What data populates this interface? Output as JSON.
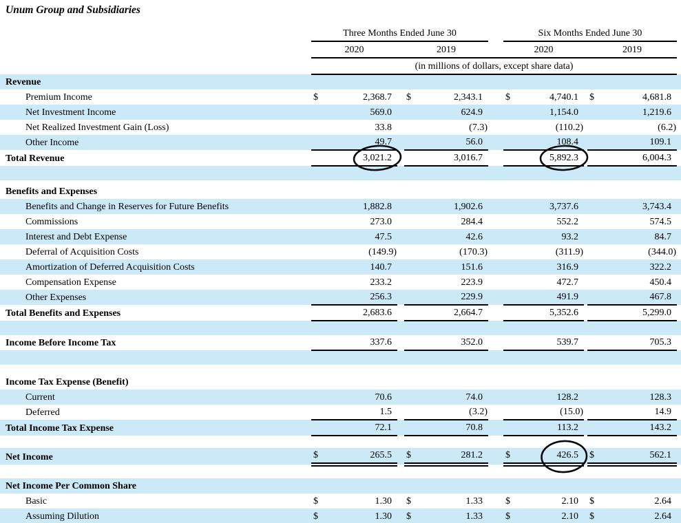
{
  "title": "Unum Group and Subsidiaries",
  "colors": {
    "row_stripe": "#cce9f8",
    "text": "#000000",
    "circle_ink": "#0a0a0a"
  },
  "table": {
    "col_groups": [
      {
        "label": "Three Months Ended June 30",
        "years": [
          "2020",
          "2019"
        ]
      },
      {
        "label": "Six Months Ended June 30",
        "years": [
          "2020",
          "2019"
        ]
      }
    ],
    "note": "(in millions of dollars, except share data)",
    "rows": [
      {
        "type": "section",
        "label": "Revenue",
        "bg": "blue"
      },
      {
        "type": "data",
        "label": "Premium Income",
        "indent": true,
        "bg": "white",
        "dollar": true,
        "values": [
          "2,368.7",
          "2,343.1",
          "4,740.1",
          "4,681.8"
        ]
      },
      {
        "type": "data",
        "label": "Net Investment Income",
        "indent": true,
        "bg": "blue",
        "values": [
          "569.0",
          "624.9",
          "1,154.0",
          "1,219.6"
        ]
      },
      {
        "type": "data",
        "label": "Net Realized Investment Gain (Loss)",
        "indent": true,
        "bg": "white",
        "values": [
          "33.8",
          "(7.3)",
          "(110.2)",
          "(6.2)"
        ]
      },
      {
        "type": "data",
        "label": "Other Income",
        "indent": true,
        "bg": "blue",
        "ul": true,
        "values": [
          "49.7",
          "56.0",
          "108.4",
          "109.1"
        ]
      },
      {
        "type": "data",
        "label": "Total Revenue",
        "bg": "white",
        "bold": true,
        "ul": true,
        "values": [
          "3,021.2",
          "3,016.7",
          "5,892.3",
          "6,004.3"
        ]
      },
      {
        "type": "spacer",
        "bg": "blue"
      },
      {
        "type": "section",
        "label": "Benefits and Expenses",
        "bg": "white",
        "pad": true
      },
      {
        "type": "data",
        "label": "Benefits and Change in Reserves for Future Benefits",
        "indent": true,
        "bg": "blue",
        "values": [
          "1,882.8",
          "1,902.6",
          "3,737.6",
          "3,743.4"
        ]
      },
      {
        "type": "data",
        "label": "Commissions",
        "indent": true,
        "bg": "white",
        "values": [
          "273.0",
          "284.4",
          "552.2",
          "574.5"
        ]
      },
      {
        "type": "data",
        "label": "Interest and Debt Expense",
        "indent": true,
        "bg": "blue",
        "values": [
          "47.5",
          "42.6",
          "93.2",
          "84.7"
        ]
      },
      {
        "type": "data",
        "label": "Deferral of Acquisition Costs",
        "indent": true,
        "bg": "white",
        "values": [
          "(149.9)",
          "(170.3)",
          "(311.9)",
          "(344.0)"
        ]
      },
      {
        "type": "data",
        "label": "Amortization of Deferred Acquisition Costs",
        "indent": true,
        "bg": "blue",
        "values": [
          "140.7",
          "151.6",
          "316.9",
          "322.2"
        ]
      },
      {
        "type": "data",
        "label": "Compensation Expense",
        "indent": true,
        "bg": "white",
        "values": [
          "233.2",
          "223.9",
          "472.7",
          "450.4"
        ]
      },
      {
        "type": "data",
        "label": "Other Expenses",
        "indent": true,
        "bg": "blue",
        "ul": true,
        "values": [
          "256.3",
          "229.9",
          "491.9",
          "467.8"
        ]
      },
      {
        "type": "data",
        "label": "Total Benefits and Expenses",
        "bg": "white",
        "bold": true,
        "ul": true,
        "values": [
          "2,683.6",
          "2,664.7",
          "5,352.6",
          "5,299.0"
        ]
      },
      {
        "type": "spacer",
        "bg": "blue"
      },
      {
        "type": "data",
        "label": "Income Before Income Tax",
        "bg": "white",
        "bold": true,
        "ul": true,
        "values": [
          "337.6",
          "352.0",
          "539.7",
          "705.3"
        ]
      },
      {
        "type": "spacer",
        "bg": "blue"
      },
      {
        "type": "spacer",
        "bg": "white",
        "size": "sm"
      },
      {
        "type": "section",
        "label": "Income Tax Expense (Benefit)",
        "bg": "white"
      },
      {
        "type": "data",
        "label": "Current",
        "indent": true,
        "bg": "blue",
        "values": [
          "70.6",
          "74.0",
          "128.2",
          "128.3"
        ]
      },
      {
        "type": "data",
        "label": "Deferred",
        "indent": true,
        "bg": "white",
        "ul": true,
        "values": [
          "1.5",
          "(3.2)",
          "(15.0)",
          "14.9"
        ]
      },
      {
        "type": "data",
        "label": "Total Income Tax Expense",
        "bg": "blue",
        "bold": true,
        "ul": true,
        "values": [
          "72.1",
          "70.8",
          "113.2",
          "143.2"
        ]
      },
      {
        "type": "spacer",
        "bg": "white",
        "size": "md"
      },
      {
        "type": "data",
        "label": "Net Income",
        "bg": "blue",
        "bold": true,
        "dollar": true,
        "dul": true,
        "values": [
          "265.5",
          "281.2",
          "426.5",
          "562.1"
        ]
      },
      {
        "type": "spacer",
        "bg": "white",
        "size": "md"
      },
      {
        "type": "section",
        "label": "Net Income Per Common Share",
        "bg": "blue"
      },
      {
        "type": "data",
        "label": "Basic",
        "indent": true,
        "bg": "white",
        "dollar": true,
        "values": [
          "1.30",
          "1.33",
          "2.10",
          "2.64"
        ]
      },
      {
        "type": "data",
        "label": "Assuming Dilution",
        "indent": true,
        "bg": "blue",
        "dollar": true,
        "values": [
          "1.30",
          "1.33",
          "2.10",
          "2.64"
        ]
      }
    ],
    "annotations": [
      {
        "row": 5,
        "col": 0,
        "circled_value": "3,021.2"
      },
      {
        "row": 5,
        "col": 2,
        "circled_value": "5,892.3"
      },
      {
        "row": 25,
        "col": 2,
        "circled_value": "426.5"
      }
    ]
  }
}
